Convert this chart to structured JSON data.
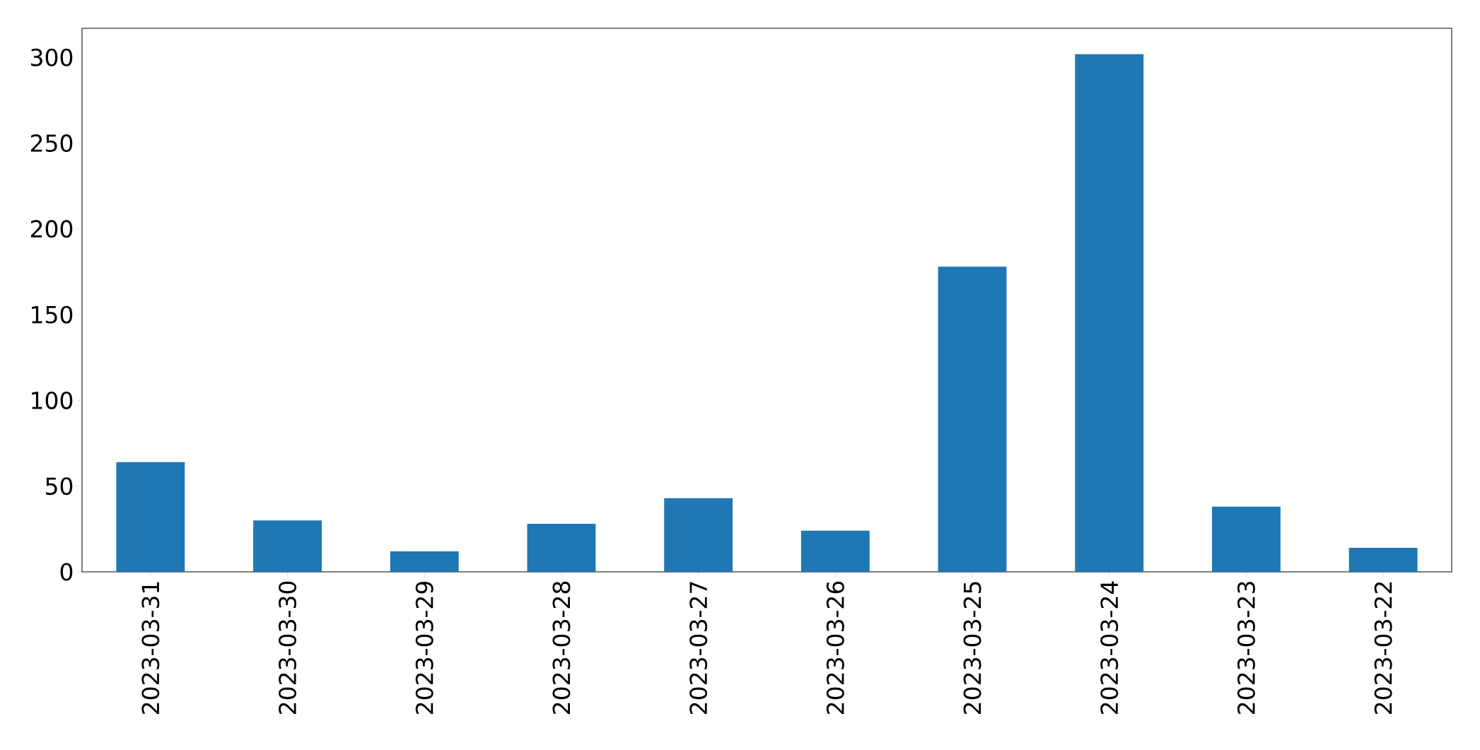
{
  "chart_data": {
    "type": "bar",
    "categories": [
      "2023-03-31",
      "2023-03-30",
      "2023-03-29",
      "2023-03-28",
      "2023-03-27",
      "2023-03-26",
      "2023-03-25",
      "2023-03-24",
      "2023-03-23",
      "2023-03-22"
    ],
    "values": [
      64,
      30,
      12,
      28,
      43,
      24,
      178,
      302,
      38,
      14
    ],
    "color": "#1f77b4",
    "ylim": [
      0,
      317
    ],
    "yticks": [
      0,
      50,
      100,
      150,
      200,
      250,
      300
    ]
  }
}
